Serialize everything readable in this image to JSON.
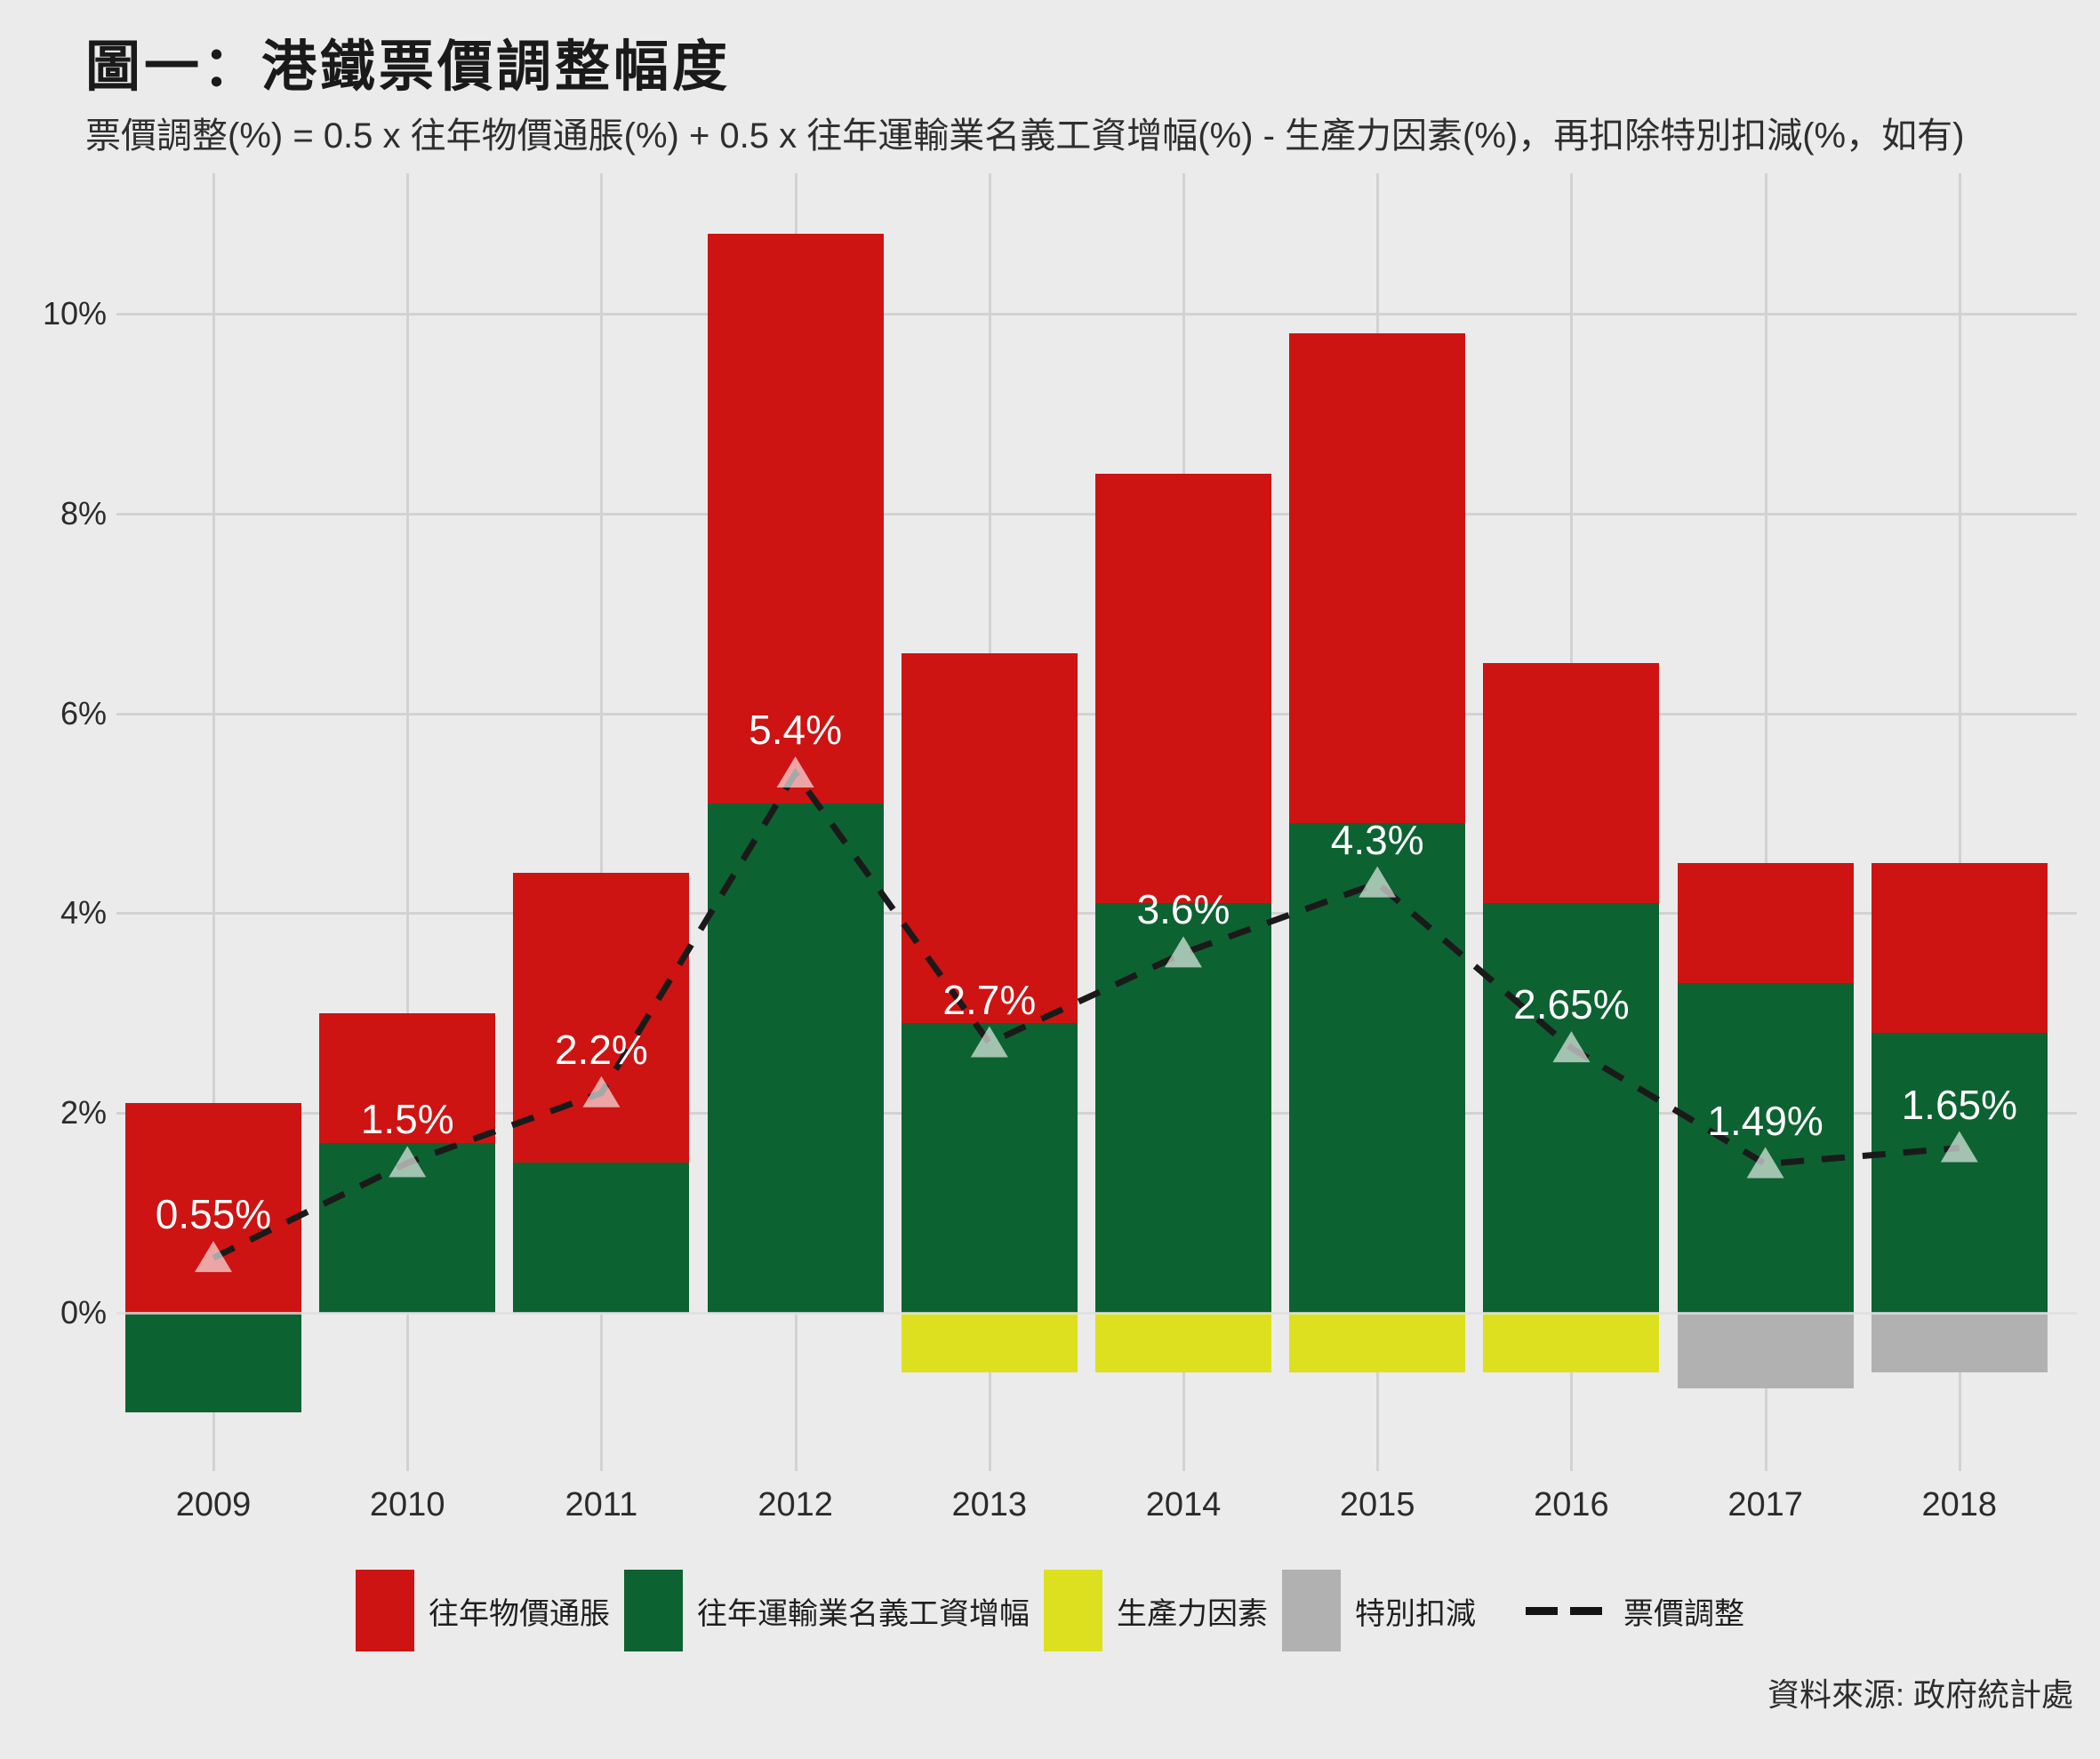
{
  "title": "圖一：港鐵票價調整幅度",
  "subtitle": "票價調整(%) = 0.5 x 往年物價通脹(%) + 0.5 x 往年運輸業名義工資增幅(%) - 生產力因素(%)，再扣除特別扣減(%，如有)",
  "source": "資料來源: 政府統計處",
  "colors": {
    "background": "#ebebeb",
    "gridline": "#d2d2d2",
    "red": "#ce1313",
    "green": "#0d6231",
    "yellow": "#dde01e",
    "gray": "#b1b1b1",
    "line": "#1a1a1a",
    "marker": "rgba(255,255,255,0.62)",
    "point_label": "#ffffff"
  },
  "chart_data": {
    "type": "bar",
    "stacked": true,
    "grid": true,
    "legend_position": "bottom",
    "categories": [
      "2009",
      "2010",
      "2011",
      "2012",
      "2013",
      "2014",
      "2015",
      "2016",
      "2017",
      "2018"
    ],
    "series": [
      {
        "name": "往年物價通脹",
        "color_key": "red",
        "values": [
          2.1,
          1.3,
          2.9,
          5.7,
          3.7,
          4.3,
          4.9,
          2.4,
          1.2,
          1.7
        ]
      },
      {
        "name": "往年運輸業名義工資增幅",
        "color_key": "green",
        "values": [
          -1.0,
          1.7,
          1.5,
          5.1,
          2.9,
          4.1,
          4.9,
          4.1,
          3.3,
          2.8
        ]
      },
      {
        "name": "生產力因素",
        "color_key": "yellow",
        "values": [
          0,
          0,
          0,
          0,
          -0.6,
          -0.6,
          -0.6,
          -0.6,
          0,
          0
        ]
      },
      {
        "name": "特別扣減",
        "color_key": "gray",
        "values": [
          0,
          0,
          0,
          0,
          0,
          0,
          0,
          0,
          -0.76,
          -0.6
        ]
      }
    ],
    "line_series": {
      "name": "票價調整",
      "values": [
        0.55,
        1.5,
        2.2,
        5.4,
        2.7,
        3.6,
        4.3,
        2.65,
        1.49,
        1.65
      ],
      "labels": [
        "0.55%",
        "1.5%",
        "2.2%",
        "5.4%",
        "2.7%",
        "3.6%",
        "4.3%",
        "2.65%",
        "1.49%",
        "1.65%"
      ]
    },
    "y_axis": {
      "ticks": [
        0,
        2,
        4,
        6,
        8,
        10
      ],
      "tick_labels": [
        "0%",
        "2%",
        "4%",
        "6%",
        "8%",
        "10%"
      ],
      "ylim": [
        -1.6,
        11.4
      ]
    },
    "legend": [
      {
        "label": "往年物價通脹",
        "swatch": "red"
      },
      {
        "label": "往年運輸業名義工資增幅",
        "swatch": "green"
      },
      {
        "label": "生產力因素",
        "swatch": "yellow"
      },
      {
        "label": "特別扣減",
        "swatch": "gray"
      },
      {
        "label": "票價調整",
        "swatch": "dash"
      }
    ]
  }
}
